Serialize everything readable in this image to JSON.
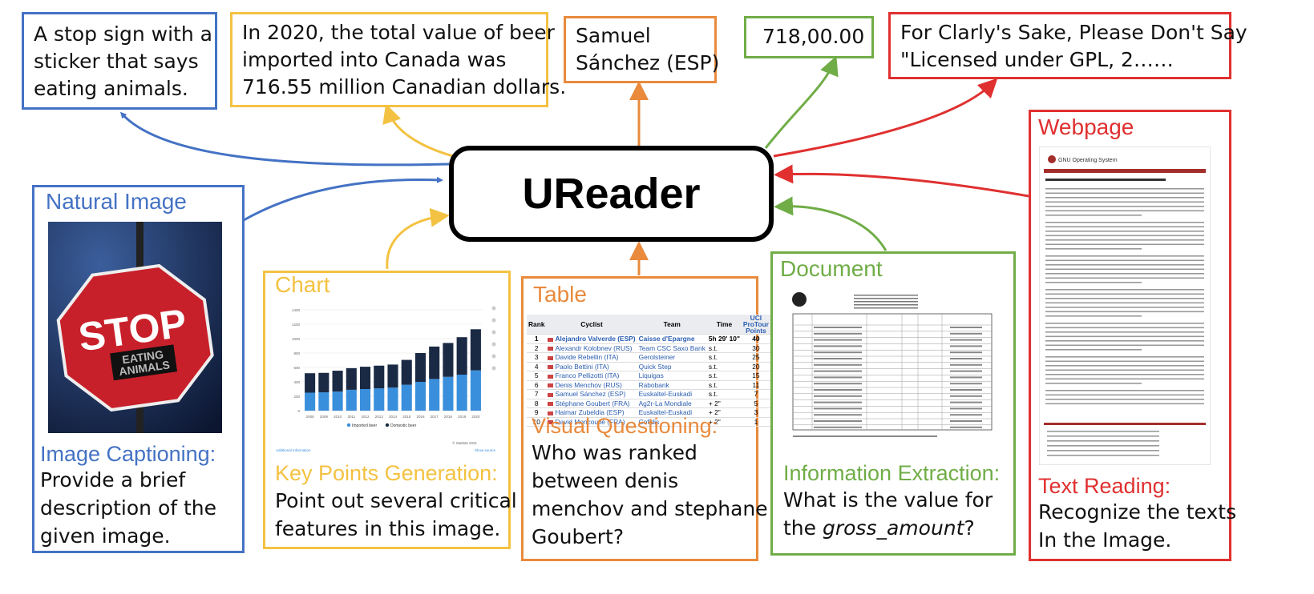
{
  "outputs": [
    {
      "lines": [
        "A stop sign with a",
        "sticker that says",
        "eating animals."
      ]
    },
    {
      "lines": [
        "In 2020, the total value of beer",
        "imported into Canada was",
        "716.55 million Canadian dollars."
      ]
    },
    {
      "lines": [
        "Samuel",
        "Sánchez (ESP)"
      ]
    },
    {
      "lines": [
        "718,00.00"
      ]
    },
    {
      "lines": [
        "For Clarly's Sake, Please Don't Say",
        "\"Licensed under GPL, 2……"
      ]
    }
  ],
  "center": "UReader",
  "panels": [
    {
      "category": "Natural Image",
      "task": "Image Captioning:",
      "prompt": [
        "Provide a brief",
        "description of the",
        "given image."
      ]
    },
    {
      "category": "Chart",
      "task": "Key Points Generation:",
      "prompt": [
        "Point out several critical",
        "features in this image."
      ]
    },
    {
      "category": "Table",
      "task": "Visual Questioning:",
      "prompt": [
        "Who was ranked",
        "between denis",
        "menchov and stephane",
        "Goubert?"
      ]
    },
    {
      "category": "Document",
      "task": "Information Extraction:",
      "prompt": [
        "What is the value for",
        "the ",
        "gross_amount",
        "?"
      ]
    },
    {
      "category": "Webpage",
      "task": "Text Reading:",
      "prompt": [
        "Recognize the texts",
        "In the Image."
      ]
    }
  ],
  "stop_image": {
    "sign": "STOP",
    "sticker": [
      "EATING",
      "ANIMALS"
    ]
  },
  "chart_thumbnail": {
    "type": "bar",
    "categories": [
      "2008",
      "2009",
      "2010",
      "2011",
      "2012",
      "2013",
      "2014",
      "2015",
      "2016",
      "2017",
      "2018",
      "2019",
      "2020"
    ],
    "series": [
      {
        "name": "Imported beer",
        "color": "#3a8fdc",
        "values": [
          250,
          255,
          265,
          290,
          300,
          310,
          320,
          360,
          400,
          440,
          470,
          500,
          560
        ]
      },
      {
        "name": "Domestic beer",
        "color": "#1b2a44",
        "values": [
          270,
          270,
          290,
          300,
          310,
          315,
          320,
          345,
          400,
          450,
          470,
          520,
          570
        ]
      }
    ],
    "ylim": [
      0,
      1400
    ],
    "yticks": [
      0,
      200,
      400,
      600,
      800,
      1000,
      1200,
      1400
    ],
    "grid": true,
    "source": "© Statista 2021",
    "info": "Additional Information",
    "show_source": "Show source"
  },
  "table_thumbnail": {
    "header": [
      "Rank",
      "Cyclist",
      "Team",
      "Time",
      "UCI ProTour Points"
    ],
    "rows": [
      [
        "1",
        "Alejandro Valverde (ESP)",
        "Caisse d'Epargne",
        "5h 29' 10\"",
        "40"
      ],
      [
        "2",
        "Alexandr Kolobnev (RUS)",
        "Team CSC Saxo Bank",
        "s.t.",
        "30"
      ],
      [
        "3",
        "Davide Rebellin (ITA)",
        "Gerolsteiner",
        "s.t.",
        "25"
      ],
      [
        "4",
        "Paolo Bettini (ITA)",
        "Quick Step",
        "s.t.",
        "20"
      ],
      [
        "5",
        "Franco Pellizotti (ITA)",
        "Liquigas",
        "s.t.",
        "15"
      ],
      [
        "6",
        "Denis Menchov (RUS)",
        "Rabobank",
        "s.t.",
        "11"
      ],
      [
        "7",
        "Samuel Sánchez (ESP)",
        "Euskaltel-Euskadi",
        "s.t.",
        "7"
      ],
      [
        "8",
        "Stéphane Goubert (FRA)",
        "Ag2r-La Mondiale",
        "+ 2\"",
        "5"
      ],
      [
        "9",
        "Haimar Zubeldia (ESP)",
        "Euskaltel-Euskadi",
        "+ 2\"",
        "3"
      ],
      [
        "10",
        "David Moncoutié (FRA)",
        "Cofidis",
        "+ 2\"",
        "1"
      ]
    ]
  },
  "webpage_thumbnail": {
    "site": "GNU Operating System"
  }
}
